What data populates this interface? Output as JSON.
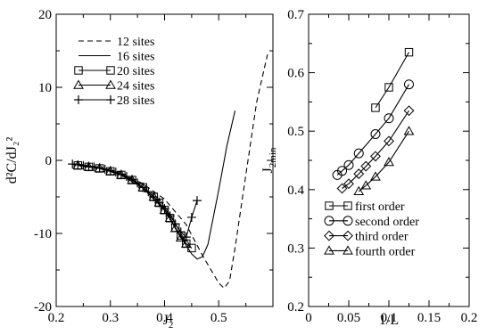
{
  "chart_data": [
    {
      "type": "line",
      "xlabel": "J",
      "xlabel_sub": "2",
      "ylabel": "d²C/dJ₂²",
      "xlim": [
        0.2,
        0.6
      ],
      "ylim": [
        -20,
        20
      ],
      "xticks": [
        0.2,
        0.3,
        0.4,
        0.5
      ],
      "xtick_labels": [
        "0.2",
        "0.3",
        "0.4",
        "0.5"
      ],
      "yticks": [
        -20,
        -10,
        0,
        10,
        20
      ],
      "ytick_labels": [
        "-20",
        "-10",
        "0",
        "10",
        "20"
      ],
      "grid": false,
      "legend_position": "top-left",
      "series": [
        {
          "name": "12 sites",
          "style": "dashed",
          "marker": "none",
          "x": [
            0.24,
            0.28,
            0.32,
            0.36,
            0.4,
            0.44,
            0.47,
            0.5,
            0.51,
            0.52,
            0.53,
            0.55,
            0.57,
            0.59
          ],
          "y": [
            -0.5,
            -1.0,
            -1.8,
            -3.2,
            -5.3,
            -8.8,
            -13.0,
            -16.8,
            -17.5,
            -16.5,
            -12.0,
            -2.0,
            8.0,
            14.5
          ]
        },
        {
          "name": "16 sites",
          "style": "solid",
          "marker": "none",
          "x": [
            0.24,
            0.28,
            0.32,
            0.36,
            0.4,
            0.43,
            0.45,
            0.46,
            0.47,
            0.48,
            0.5,
            0.515,
            0.53
          ],
          "y": [
            -0.5,
            -1.0,
            -2.0,
            -3.8,
            -6.8,
            -10.5,
            -12.8,
            -13.5,
            -13.2,
            -11.5,
            -4.0,
            2.0,
            6.8
          ]
        },
        {
          "name": "20 sites",
          "style": "solid",
          "marker": "square",
          "x": [
            0.24,
            0.26,
            0.28,
            0.3,
            0.32,
            0.34,
            0.36,
            0.38,
            0.39,
            0.4,
            0.41,
            0.42,
            0.43,
            0.44,
            0.45
          ],
          "y": [
            -0.7,
            -0.9,
            -1.1,
            -1.5,
            -2.0,
            -2.7,
            -3.7,
            -5.0,
            -5.8,
            -6.8,
            -7.9,
            -9.2,
            -10.3,
            -11.4,
            -12.0
          ]
        },
        {
          "name": "24 sites",
          "style": "solid",
          "marker": "triangle",
          "x": [
            0.24,
            0.26,
            0.28,
            0.3,
            0.32,
            0.34,
            0.36,
            0.38,
            0.39,
            0.4,
            0.41,
            0.42,
            0.43,
            0.44
          ],
          "y": [
            -0.7,
            -0.9,
            -1.1,
            -1.5,
            -2.0,
            -2.7,
            -3.7,
            -5.0,
            -5.8,
            -6.8,
            -7.9,
            -9.3,
            -10.6,
            -11.4
          ]
        },
        {
          "name": "28 sites",
          "style": "solid",
          "marker": "plus",
          "x": [
            0.23,
            0.24,
            0.25,
            0.26,
            0.27,
            0.28,
            0.29,
            0.3,
            0.31,
            0.32,
            0.33,
            0.34,
            0.35,
            0.36,
            0.37,
            0.38,
            0.39,
            0.4,
            0.41,
            0.42,
            0.43,
            0.44,
            0.45,
            0.46
          ],
          "y": [
            -0.5,
            -0.6,
            -0.7,
            -0.8,
            -0.9,
            -1.0,
            -1.2,
            -1.4,
            -1.6,
            -1.9,
            -2.2,
            -2.6,
            -3.1,
            -3.7,
            -4.3,
            -5.0,
            -5.8,
            -6.6,
            -7.6,
            -8.7,
            -9.8,
            -10.5,
            -7.8,
            -5.5
          ]
        }
      ]
    },
    {
      "type": "line",
      "xlabel": "1/L",
      "ylabel": "J",
      "ylabel_sub": "2min",
      "xlim": [
        0,
        0.2
      ],
      "ylim": [
        0.2,
        0.7
      ],
      "xticks": [
        0,
        0.05,
        0.1,
        0.15,
        0.2
      ],
      "xtick_labels": [
        "0",
        "0.05",
        "0.1",
        "0.15",
        "0.2"
      ],
      "yticks": [
        0.2,
        0.3,
        0.4,
        0.5,
        0.6,
        0.7
      ],
      "ytick_labels": [
        "0.2",
        "0.3",
        "0.4",
        "0.5",
        "0.6",
        "0.7"
      ],
      "grid": false,
      "legend_position": "bottom-center",
      "series": [
        {
          "name": "first order",
          "marker": "square",
          "x": [
            0.0833,
            0.1,
            0.125
          ],
          "y": [
            0.54,
            0.575,
            0.635
          ]
        },
        {
          "name": "second order",
          "marker": "circle",
          "x": [
            0.0357,
            0.0417,
            0.05,
            0.0625,
            0.0833,
            0.1,
            0.125
          ],
          "y": [
            0.425,
            0.432,
            0.442,
            0.462,
            0.495,
            0.522,
            0.58
          ]
        },
        {
          "name": "third order",
          "marker": "diamond",
          "x": [
            0.0417,
            0.05,
            0.0625,
            0.0714,
            0.0833,
            0.1,
            0.125
          ],
          "y": [
            0.402,
            0.41,
            0.427,
            0.44,
            0.457,
            0.483,
            0.535
          ]
        },
        {
          "name": "fourth order",
          "marker": "triangle",
          "x": [
            0.0625,
            0.0714,
            0.0833,
            0.1,
            0.125
          ],
          "y": [
            0.397,
            0.407,
            0.422,
            0.447,
            0.5
          ]
        }
      ]
    }
  ]
}
